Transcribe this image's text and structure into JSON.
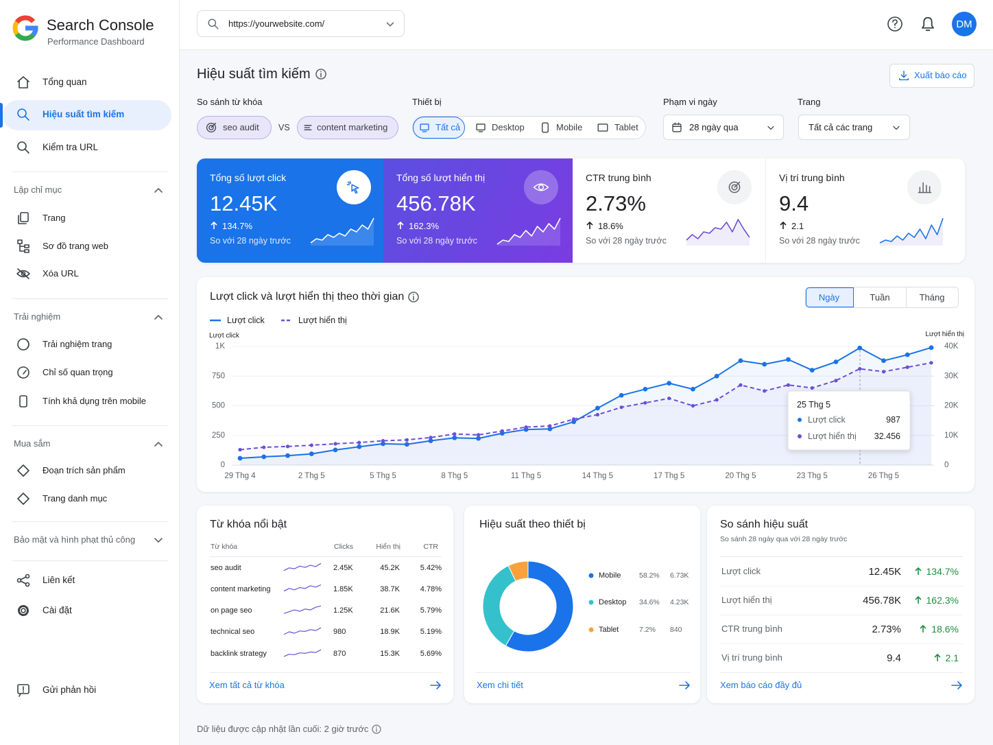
{
  "sidebar": {
    "title": "Search Console",
    "subtitle": "Performance Dashboard",
    "nav": [
      "Tổng quan",
      "Hiệu suất tìm kiếm",
      "Kiểm tra URL"
    ],
    "sections": [
      {
        "title": "Lập chỉ mục",
        "items": [
          "Trang",
          "Sơ đồ trang web",
          "Xóa URL"
        ]
      },
      {
        "title": "Trải nghiệm",
        "items": [
          "Trải nghiệm trang",
          "Chỉ số quan trọng",
          "Tính khả dụng trên mobile"
        ]
      },
      {
        "title": "Mua sắm",
        "items": [
          "Đoạn trích sản phẩm",
          "Trang danh mục"
        ]
      },
      {
        "title": "Bảo mật và hình phạt thủ công"
      }
    ],
    "bottom_nav": [
      "Liên kết",
      "Cài đặt"
    ],
    "feedback": "Gửi phản hồi"
  },
  "topbar": {
    "url": "https://yourwebsite.com/",
    "avatar": "DM"
  },
  "header": {
    "title": "Hiệu suất tìm kiếm",
    "export": "Xuất báo cáo"
  },
  "filters": {
    "keyword_label": "So sánh từ khóa",
    "keyword_a": "seo audit",
    "vs": "VS",
    "keyword_b": "content marketing",
    "device_label": "Thiết bị",
    "devices": [
      "Tất cả",
      "Desktop",
      "Mobile",
      "Tablet"
    ],
    "date_label": "Phạm vi ngày",
    "date_value": "28 ngày qua",
    "page_label": "Trang",
    "page_value": "Tất cả các trang"
  },
  "kpis": [
    {
      "label": "Tổng số lượt click",
      "value": "12.45K",
      "change": "134.7%",
      "compare": "So với 28 ngày trước"
    },
    {
      "label": "Tổng số lượt hiển thị",
      "value": "456.78K",
      "change": "162.3%",
      "compare": "So với 28 ngày trước"
    },
    {
      "label": "CTR trung bình",
      "value": "2.73%",
      "change": "18.6%",
      "compare": "So với 28 ngày trước"
    },
    {
      "label": "Vị trí trung bình",
      "value": "9.4",
      "change": "2.1",
      "compare": "So với 28 ngày trước"
    }
  ],
  "chart_data": [
    {
      "type": "line",
      "title": "Lượt click và lượt hiển thị theo thời gian",
      "views": [
        "Ngày",
        "Tuần",
        "Tháng"
      ],
      "categories": [
        "29 Thg 4",
        null,
        null,
        "2 Thg 5",
        null,
        null,
        "5 Thg 5",
        null,
        null,
        "8 Thg 5",
        null,
        null,
        "11 Thg 5",
        null,
        null,
        "14 Thg 5",
        null,
        null,
        "17 Thg 5",
        null,
        null,
        "20 Thg 5",
        null,
        null,
        "23 Thg 5",
        null,
        null,
        "26 Thg 5",
        null,
        null
      ],
      "series": [
        {
          "name": "Lượt click",
          "color": "#1a73e8",
          "values": [
            58,
            70,
            80,
            95,
            128,
            155,
            180,
            175,
            205,
            230,
            225,
            268,
            300,
            305,
            365,
            480,
            588,
            640,
            690,
            640,
            750,
            880,
            850,
            890,
            800,
            870,
            987,
            880,
            930,
            990
          ]
        },
        {
          "name": "Lượt hiển thị",
          "color": "#6a4fd8",
          "axis": "y2",
          "dashed": true,
          "values": [
            5200,
            6000,
            6300,
            6700,
            7200,
            7600,
            8200,
            8500,
            9300,
            10500,
            10200,
            11500,
            12800,
            13200,
            15500,
            17000,
            19500,
            21000,
            22500,
            20000,
            22000,
            27000,
            25000,
            27000,
            26000,
            28500,
            32456,
            31500,
            33000,
            34500
          ]
        }
      ],
      "ylabel": "Lượt click",
      "y2label": "Lượt hiển thị",
      "ylim": [
        0,
        1000
      ],
      "yticks": [
        0,
        250,
        500,
        750,
        {
          "value": 1000,
          "label": "1K"
        }
      ],
      "y2lim": [
        0,
        40000
      ],
      "y2ticks": [
        0,
        {
          "value": 10000,
          "label": "10K"
        },
        {
          "value": 20000,
          "label": "20K"
        },
        {
          "value": 30000,
          "label": "30K"
        },
        {
          "value": 40000,
          "label": "40K"
        }
      ],
      "grid": true,
      "tooltip": {
        "title": "25 Thg 5",
        "values": [
          "987",
          "32.456"
        ]
      }
    },
    {
      "type": "pie",
      "donut": true,
      "title": "Hiệu suất theo thiết bị",
      "categories": [
        "Mobile",
        "Desktop",
        "Tablet"
      ],
      "values": [
        58.2,
        34.6,
        7.2
      ],
      "value_labels": [
        "58.2%",
        "34.6%",
        "7.2%"
      ],
      "counts": [
        "6.73K",
        "4.23K",
        "840"
      ],
      "colors": [
        "#1a73e8",
        "#34c1cc",
        "#f9a23b"
      ],
      "link": "Xem chi tiết"
    }
  ],
  "keywords": {
    "title": "Từ khóa nổi bật",
    "columns": [
      "Từ khóa",
      "Clicks",
      "Hiển thị",
      "CTR"
    ],
    "rows": [
      [
        "seo audit",
        "2.45K",
        "45.2K",
        "5.42%"
      ],
      [
        "content marketing",
        "1.85K",
        "38.7K",
        "4.78%"
      ],
      [
        "on page seo",
        "1.25K",
        "21.6K",
        "5.79%"
      ],
      [
        "technical seo",
        "980",
        "18.9K",
        "5.19%"
      ],
      [
        "backlink strategy",
        "870",
        "15.3K",
        "5.69%"
      ]
    ],
    "link": "Xem tất cả từ khóa"
  },
  "comparison": {
    "title": "So sánh hiệu suất",
    "subtitle": "So sánh 28 ngày qua với 28 ngày trước",
    "rows": [
      [
        "Lượt click",
        "12.45K",
        "134.7%"
      ],
      [
        "Lượt hiển thị",
        "456.78K",
        "162.3%"
      ],
      [
        "CTR trung bình",
        "2.73%",
        "18.6%"
      ],
      [
        "Vị trí trung bình",
        "9.4",
        "2.1"
      ]
    ],
    "link": "Xem báo cáo đầy đủ"
  },
  "footer": "Dữ liệu được cập nhật lần cuối: 2 giờ trước"
}
